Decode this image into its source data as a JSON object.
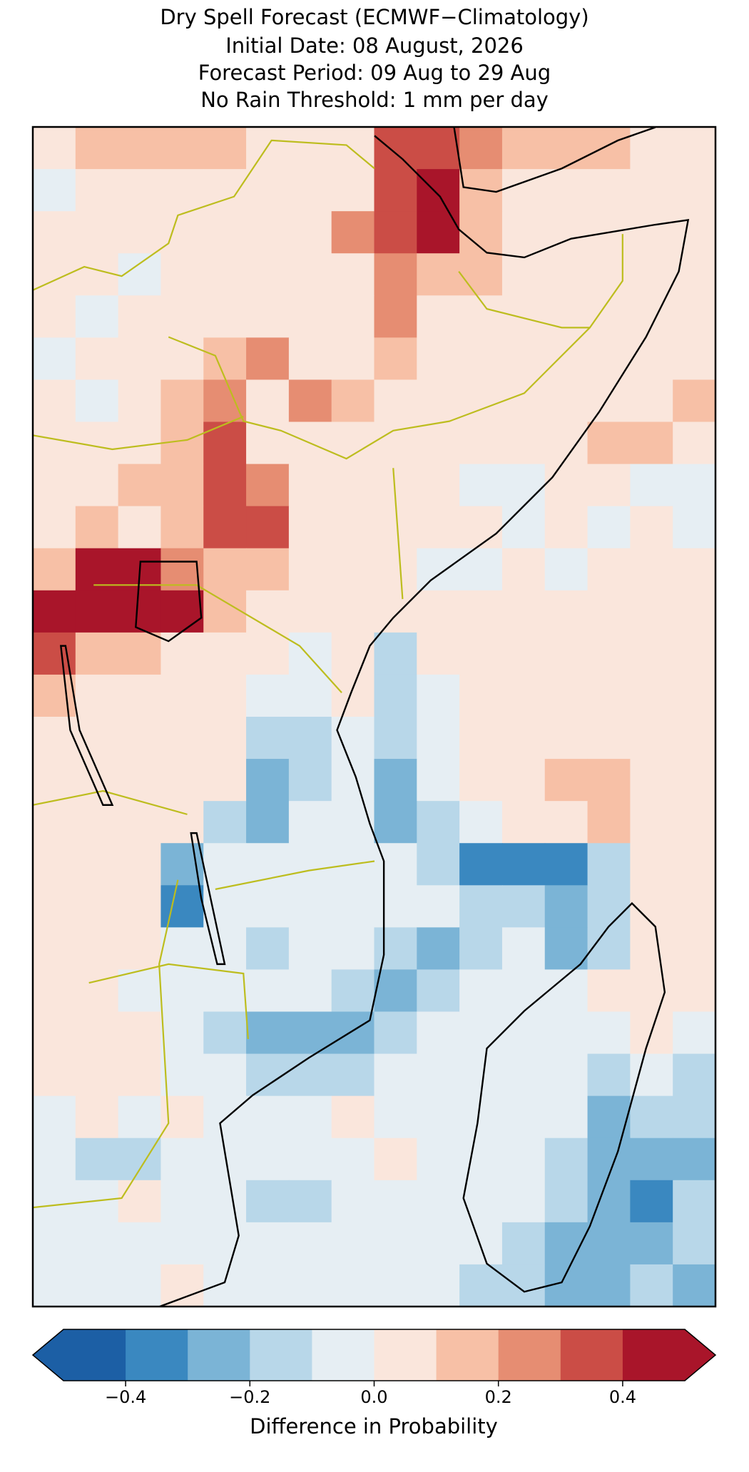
{
  "chart_data": {
    "type": "heatmap",
    "title": [
      "Dry Spell Forecast (ECMWF−Climatology)",
      "Initial Date: 08 August, 2026",
      "Forecast Period: 09 Aug to 29 Aug",
      "No Rain Threshold: 1 mm per day"
    ],
    "values": [
      [
        0.05,
        0.15,
        0.15,
        0.15,
        0.15,
        0.05,
        0.05,
        0.05,
        0.35,
        0.35,
        0.25,
        0.15,
        0.15,
        0.15,
        0.05,
        0.05
      ],
      [
        -0.05,
        0.05,
        0.05,
        0.05,
        0.05,
        0.05,
        0.05,
        0.05,
        0.35,
        0.45,
        0.15,
        0.05,
        0.05,
        0.05,
        0.05,
        0.05
      ],
      [
        0.05,
        0.05,
        0.05,
        0.05,
        0.05,
        0.05,
        0.05,
        0.25,
        0.35,
        0.45,
        0.15,
        0.05,
        0.05,
        0.05,
        0.05,
        0.05
      ],
      [
        0.05,
        0.05,
        -0.05,
        0.05,
        0.05,
        0.05,
        0.05,
        0.05,
        0.25,
        0.15,
        0.15,
        0.05,
        0.05,
        0.05,
        0.05,
        0.05
      ],
      [
        0.05,
        -0.05,
        0.05,
        0.05,
        0.05,
        0.05,
        0.05,
        0.05,
        0.25,
        0.05,
        0.05,
        0.05,
        0.05,
        0.05,
        0.05,
        0.05
      ],
      [
        -0.05,
        0.05,
        0.05,
        0.05,
        0.15,
        0.25,
        0.05,
        0.05,
        0.15,
        0.05,
        0.05,
        0.05,
        0.05,
        0.05,
        0.05,
        0.05
      ],
      [
        0.05,
        -0.05,
        0.05,
        0.15,
        0.25,
        0.05,
        0.25,
        0.15,
        0.05,
        0.05,
        0.05,
        0.05,
        0.05,
        0.05,
        0.05,
        0.15
      ],
      [
        0.05,
        0.05,
        0.05,
        0.15,
        0.35,
        0.05,
        0.05,
        0.05,
        0.05,
        0.05,
        0.05,
        0.05,
        0.05,
        0.15,
        0.15,
        0.05
      ],
      [
        0.05,
        0.05,
        0.15,
        0.15,
        0.35,
        0.25,
        0.05,
        0.05,
        0.05,
        0.05,
        -0.05,
        -0.05,
        0.05,
        0.05,
        -0.05,
        -0.05
      ],
      [
        0.05,
        0.15,
        0.05,
        0.15,
        0.35,
        0.35,
        0.05,
        0.05,
        0.05,
        0.05,
        0.05,
        -0.05,
        0.05,
        -0.05,
        0.05,
        -0.05
      ],
      [
        0.15,
        0.45,
        0.45,
        0.25,
        0.15,
        0.15,
        0.05,
        0.05,
        0.05,
        -0.05,
        -0.05,
        0.05,
        -0.05,
        0.05,
        0.05,
        0.05
      ],
      [
        0.45,
        0.45,
        0.45,
        0.45,
        0.15,
        0.05,
        0.05,
        0.05,
        0.05,
        0.05,
        0.05,
        0.05,
        0.05,
        0.05,
        0.05,
        0.05
      ],
      [
        0.35,
        0.15,
        0.15,
        0.05,
        0.05,
        0.05,
        -0.05,
        0.05,
        -0.15,
        0.05,
        0.05,
        0.05,
        0.05,
        0.05,
        0.05,
        0.05
      ],
      [
        0.15,
        0.05,
        0.05,
        0.05,
        0.05,
        -0.05,
        -0.05,
        0.05,
        -0.15,
        -0.05,
        0.05,
        0.05,
        0.05,
        0.05,
        0.05,
        0.05
      ],
      [
        0.05,
        0.05,
        0.05,
        0.05,
        0.05,
        -0.15,
        -0.15,
        -0.05,
        -0.15,
        -0.05,
        0.05,
        0.05,
        0.05,
        0.05,
        0.05,
        0.05
      ],
      [
        0.05,
        0.05,
        0.05,
        0.05,
        0.05,
        -0.25,
        -0.15,
        -0.05,
        -0.25,
        -0.05,
        0.05,
        0.05,
        0.15,
        0.15,
        0.05,
        0.05
      ],
      [
        0.05,
        0.05,
        0.05,
        0.05,
        -0.15,
        -0.25,
        -0.05,
        -0.05,
        -0.25,
        -0.15,
        -0.05,
        0.05,
        0.05,
        0.15,
        0.05,
        0.05
      ],
      [
        0.05,
        0.05,
        0.05,
        -0.25,
        -0.05,
        -0.05,
        -0.05,
        -0.05,
        -0.05,
        -0.15,
        -0.35,
        -0.35,
        -0.35,
        -0.15,
        0.05,
        0.05
      ],
      [
        0.05,
        0.05,
        0.05,
        -0.35,
        -0.05,
        -0.05,
        -0.05,
        -0.05,
        -0.05,
        -0.05,
        -0.15,
        -0.15,
        -0.25,
        -0.15,
        0.05,
        0.05
      ],
      [
        0.05,
        0.05,
        0.05,
        -0.05,
        -0.05,
        -0.15,
        -0.05,
        -0.05,
        -0.15,
        -0.25,
        -0.15,
        -0.05,
        -0.25,
        -0.15,
        0.05,
        0.05
      ],
      [
        0.05,
        0.05,
        -0.05,
        -0.05,
        -0.05,
        -0.05,
        -0.05,
        -0.15,
        -0.25,
        -0.15,
        -0.05,
        -0.05,
        -0.05,
        0.05,
        0.05,
        0.05
      ],
      [
        0.05,
        0.05,
        0.05,
        -0.05,
        -0.15,
        -0.25,
        -0.25,
        -0.25,
        -0.15,
        -0.05,
        -0.05,
        -0.05,
        -0.05,
        -0.05,
        0.05,
        -0.05
      ],
      [
        0.05,
        0.05,
        0.05,
        -0.05,
        -0.05,
        -0.15,
        -0.15,
        -0.15,
        -0.05,
        -0.05,
        -0.05,
        -0.05,
        -0.05,
        -0.15,
        -0.05,
        -0.15
      ],
      [
        -0.05,
        0.05,
        -0.05,
        0.05,
        -0.05,
        -0.05,
        -0.05,
        0.05,
        -0.05,
        -0.05,
        -0.05,
        -0.05,
        -0.05,
        -0.25,
        -0.15,
        -0.15
      ],
      [
        -0.05,
        -0.15,
        -0.15,
        -0.05,
        -0.05,
        -0.05,
        -0.05,
        -0.05,
        0.05,
        -0.05,
        -0.05,
        -0.05,
        -0.15,
        -0.25,
        -0.25,
        -0.25
      ],
      [
        -0.05,
        -0.05,
        0.05,
        -0.05,
        -0.05,
        -0.15,
        -0.15,
        -0.05,
        -0.05,
        -0.05,
        -0.05,
        -0.05,
        -0.15,
        -0.25,
        -0.35,
        -0.15
      ],
      [
        -0.05,
        -0.05,
        -0.05,
        -0.05,
        -0.05,
        -0.05,
        -0.05,
        -0.05,
        -0.05,
        -0.05,
        -0.05,
        -0.15,
        -0.25,
        -0.25,
        -0.25,
        -0.15
      ],
      [
        -0.05,
        -0.05,
        -0.05,
        0.05,
        -0.05,
        -0.05,
        -0.05,
        -0.05,
        -0.05,
        -0.05,
        -0.15,
        -0.15,
        -0.25,
        -0.25,
        -0.15,
        -0.25
      ]
    ],
    "colorbar": {
      "bounds": [
        -0.5,
        -0.4,
        -0.3,
        -0.2,
        -0.1,
        0,
        0.1,
        0.2,
        0.3,
        0.4,
        0.5
      ],
      "colors": [
        "#1c5fa5",
        "#3a88c0",
        "#7bb4d6",
        "#b8d7e9",
        "#e6eef3",
        "#fae6dc",
        "#f7c0a6",
        "#e68d72",
        "#cb4d46",
        "#a9152a"
      ],
      "extend_colors": [
        "#1c5fa5",
        "#a9152a"
      ],
      "ticks": [
        {
          "value": -0.4,
          "label": "−0.4"
        },
        {
          "value": -0.2,
          "label": "−0.2"
        },
        {
          "value": 0,
          "label": "0.0"
        },
        0.2,
        0.4
      ],
      "label": "Difference in Probability"
    }
  }
}
